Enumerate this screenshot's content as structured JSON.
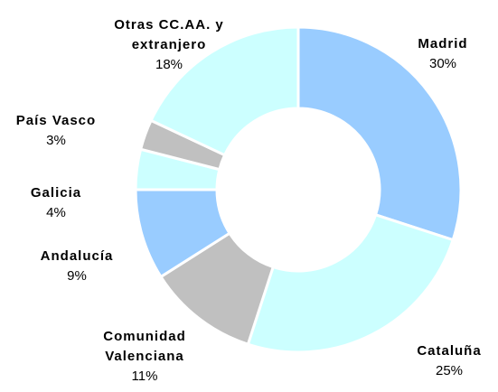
{
  "chart_data": {
    "type": "donut",
    "categories": [
      "Madrid",
      "Cataluña",
      "Comunidad Valenciana",
      "Andalucía",
      "Galicia",
      "País Vasco",
      "Otras CC.AA. y extranjero"
    ],
    "values": [
      30,
      25,
      11,
      9,
      4,
      3,
      18
    ],
    "value_labels": [
      "30%",
      "25%",
      "11%",
      "9%",
      "4%",
      "3%",
      "18%"
    ],
    "colors": [
      "#99ccff",
      "#ccffff",
      "#c0c0c0",
      "#99ccff",
      "#ccffff",
      "#c0c0c0",
      "#ccffff"
    ]
  }
}
